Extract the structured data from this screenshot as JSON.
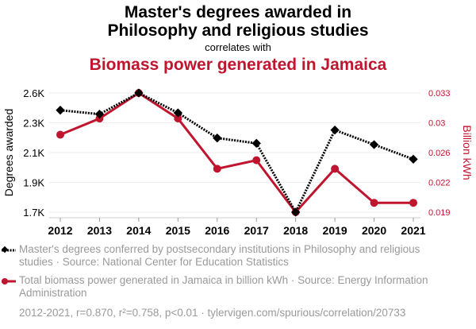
{
  "title_line1": "Master's degrees awarded in",
  "title_line2": "Philosophy and religious studies",
  "correlates_with": "correlates with",
  "subtitle": "Biomass power generated in Jamaica",
  "chart_data": {
    "type": "line",
    "x": [
      "2012",
      "2013",
      "2014",
      "2015",
      "2016",
      "2017",
      "2018",
      "2019",
      "2020",
      "2021"
    ],
    "series": [
      {
        "name": "Master's degrees conferred by postsecondary institutions in Philosophy and religious studies · Source: National Center for Education Statistics",
        "axis": "left",
        "color": "#000000",
        "values": [
          2470,
          2440,
          2600,
          2450,
          2260,
          2220,
          1700,
          2320,
          2210,
          2100
        ]
      },
      {
        "name": "Total biomass power generated in Jamaica in billion kWh · Source: Energy Information Administration",
        "axis": "right",
        "color": "#c0152f",
        "values": [
          0.0281,
          0.03,
          0.033,
          0.03,
          0.0241,
          0.0251,
          0.019,
          0.0241,
          0.0201,
          0.0201
        ]
      }
    ],
    "ylabel": "Degrees awarded",
    "ylabel_right": "Billion kWh",
    "ylim": [
      1700,
      2600
    ],
    "ylim_right": [
      0.019,
      0.033
    ],
    "yticks": [
      "1.7K",
      "1.9K",
      "2.1K",
      "2.3K",
      "2.6K"
    ],
    "yticks_right": [
      "0.019",
      "0.022",
      "0.026",
      "0.03",
      "0.033"
    ],
    "grid": true
  },
  "legend": [
    "Master's degrees conferred by postsecondary institutions in Philosophy and religious studies · Source: National Center for Education Statistics",
    "Total biomass power generated in Jamaica in billion kWh · Source: Energy Information Administration"
  ],
  "footer": "2012-2021, r=0.870, r²=0.758, p<0.01 · tylervigen.com/spurious/correlation/20733"
}
